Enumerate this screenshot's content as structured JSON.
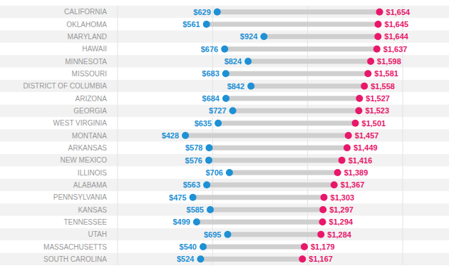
{
  "chart_data": {
    "type": "dumbbell",
    "categories": [
      "CALIFORNIA",
      "OKLAHOMA",
      "MARYLAND",
      "HAWAII",
      "MINNESOTA",
      "MISSOURI",
      "DISTRICT OF COLUMBIA",
      "ARIZONA",
      "GEORGIA",
      "WEST VIRGINIA",
      "MONTANA",
      "ARKANSAS",
      "NEW MEXICO",
      "ILLINOIS",
      "ALABAMA",
      "PENNSYLVANIA",
      "KANSAS",
      "TENNESSEE",
      "UTAH",
      "MASSACHUSETTS",
      "SOUTH CAROLINA"
    ],
    "series": [
      {
        "color": "#1E90D4",
        "values": [
          629,
          561,
          924,
          676,
          824,
          683,
          842,
          684,
          727,
          635,
          428,
          578,
          576,
          706,
          563,
          475,
          585,
          499,
          695,
          540,
          524
        ],
        "value_labels": [
          "$629",
          "$561",
          "$924",
          "$676",
          "$824",
          "$683",
          "$842",
          "$684",
          "$727",
          "$635",
          "$428",
          "$578",
          "$576",
          "$706",
          "$563",
          "$475",
          "$585",
          "$499",
          "$695",
          "$540",
          "$524"
        ]
      },
      {
        "color": "#E8176A",
        "values": [
          1654,
          1645,
          1644,
          1637,
          1598,
          1581,
          1558,
          1527,
          1523,
          1501,
          1457,
          1449,
          1416,
          1389,
          1367,
          1303,
          1297,
          1294,
          1284,
          1179,
          1167
        ],
        "value_labels": [
          "$1,654",
          "$1,645",
          "$1,644",
          "$1,637",
          "$1,598",
          "$1,581",
          "$1,558",
          "$1,527",
          "$1,523",
          "$1,501",
          "$1,457",
          "$1,449",
          "$1,416",
          "$1,389",
          "$1,367",
          "$1,303",
          "$1,297",
          "$1,294",
          "$1,284",
          "$1,179",
          "$1,167"
        ]
      }
    ],
    "xlim": [
      0,
      1800
    ],
    "xticks": [
      0,
      600,
      1200,
      1800
    ],
    "grid": true,
    "data_labels": true,
    "tick_labels": "y"
  }
}
